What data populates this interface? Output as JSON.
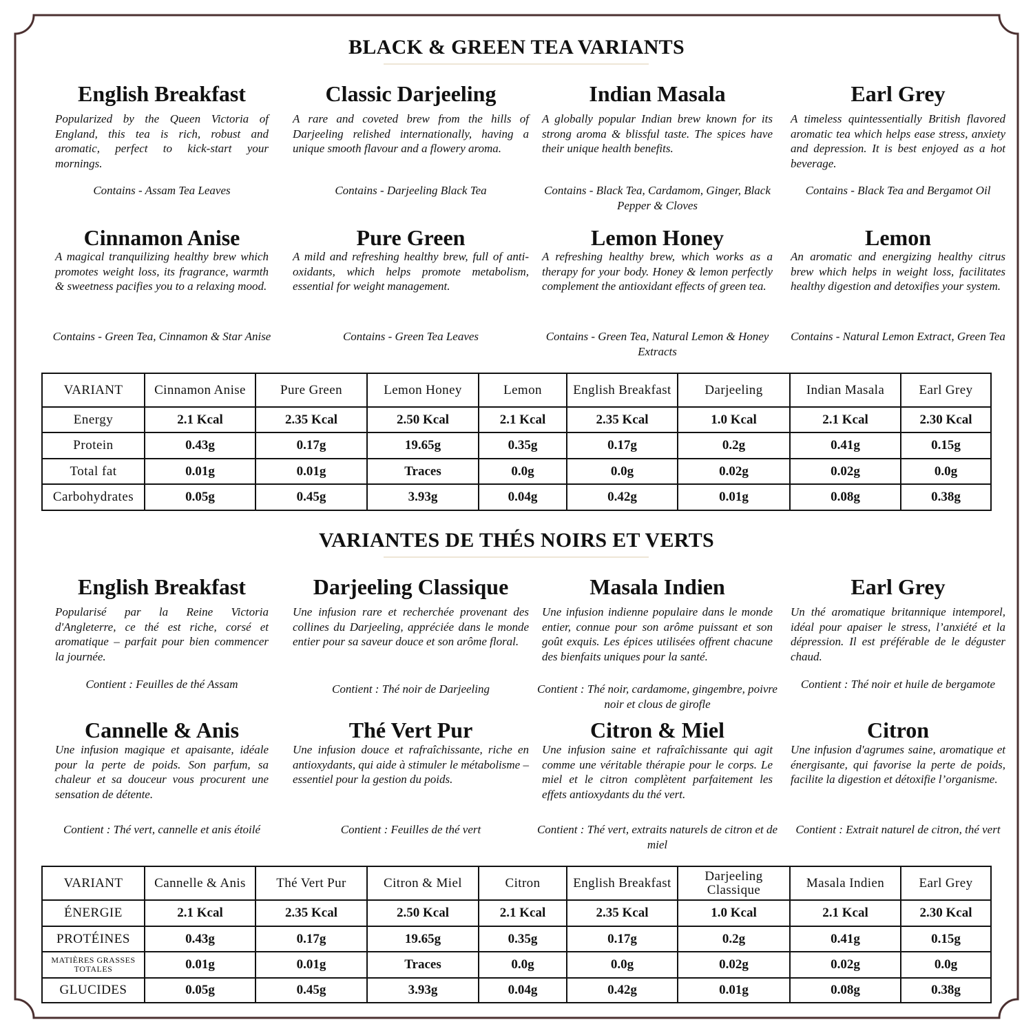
{
  "colors": {
    "border": "#4b3030",
    "rule": "#eee6d6",
    "text": "#111111"
  },
  "en": {
    "heading": "BLACK & GREEN TEA VARIANTS",
    "cards": [
      {
        "title": "English Breakfast",
        "desc": "Popularized by the Queen Victoria of England, this tea is rich, robust and aromatic, perfect to kick-start your mornings.",
        "contains": "Contains - Assam Tea Leaves"
      },
      {
        "title": "Classic Darjeeling",
        "desc": "A rare and coveted brew from the hills of Darjeeling relished internationally, having a unique smooth flavour and a flowery aroma.",
        "contains": "Contains - Darjeeling Black Tea"
      },
      {
        "title": "Indian Masala",
        "desc": "A globally popular Indian brew known for its strong aroma & blissful taste. The spices have their unique health benefits.",
        "contains": "Contains - Black Tea, Cardamom, Ginger, Black Pepper & Cloves"
      },
      {
        "title": "Earl Grey",
        "desc": "A timeless quintessentially British flavored aromatic tea which helps ease stress, anxiety and depression. It is best enjoyed as a hot beverage.",
        "contains": "Contains - Black Tea and Bergamot Oil"
      },
      {
        "title": "Cinnamon Anise",
        "desc": "A magical tranquilizing healthy brew which promotes weight loss, its fragrance, warmth & sweetness pacifies you to a relaxing mood.",
        "contains": "Contains - Green Tea, Cinnamon & Star Anise"
      },
      {
        "title": "Pure Green",
        "desc": "A mild and refreshing healthy brew, full of anti-oxidants, which helps promote metabolism, essential for weight management.",
        "contains": "Contains - Green Tea Leaves"
      },
      {
        "title": "Lemon Honey",
        "desc": "A refreshing healthy brew, which works as a therapy for your body. Honey & lemon perfectly complement the antioxidant effects of green tea.",
        "contains": "Contains - Green Tea, Natural Lemon & Honey Extracts"
      },
      {
        "title": "Lemon",
        "desc": "An aromatic and energizing healthy citrus brew which helps in weight loss, facilitates healthy digestion and detoxifies your system.",
        "contains": "Contains - Natural Lemon Extract, Green Tea"
      }
    ],
    "table": {
      "header": [
        "VARIANT",
        "Cinnamon Anise",
        "Pure Green",
        "Lemon Honey",
        "Lemon",
        "English Breakfast",
        "Darjeeling",
        "Indian Masala",
        "Earl Grey"
      ],
      "rows": [
        [
          "Energy",
          "2.1 Kcal",
          "2.35 Kcal",
          "2.50 Kcal",
          "2.1 Kcal",
          "2.35 Kcal",
          "1.0 Kcal",
          "2.1 Kcal",
          "2.30 Kcal"
        ],
        [
          "Protein",
          "0.43g",
          "0.17g",
          "19.65g",
          "0.35g",
          "0.17g",
          "0.2g",
          "0.41g",
          "0.15g"
        ],
        [
          "Total fat",
          "0.01g",
          "0.01g",
          "Traces",
          "0.0g",
          "0.0g",
          "0.02g",
          "0.02g",
          "0.0g"
        ],
        [
          "Carbohydrates",
          "0.05g",
          "0.45g",
          "3.93g",
          "0.04g",
          "0.42g",
          "0.01g",
          "0.08g",
          "0.38g"
        ]
      ]
    }
  },
  "fr": {
    "heading": "VARIANTES DE THÉS NOIRS ET VERTS",
    "cards": [
      {
        "title": "English Breakfast",
        "desc": "Popularisé par la Reine Victoria d'Angleterre, ce thé est riche, corsé et aromatique – parfait pour bien commencer la journée.",
        "contains": "Contient : Feuilles de thé Assam"
      },
      {
        "title": "Darjeeling Classique",
        "desc": "Une infusion rare et recherchée provenant des collines du Darjeeling, appréciée dans le monde entier pour sa saveur douce et son arôme floral.",
        "contains": "Contient : Thé noir de Darjeeling"
      },
      {
        "title": "Masala Indien",
        "desc": "Une infusion indienne populaire dans le monde entier, connue pour son arôme puissant et son goût exquis. Les épices utilisées offrent chacune des bienfaits uniques pour la santé.",
        "contains": "Contient : Thé noir, cardamome, gingembre, poivre noir et clous de girofle"
      },
      {
        "title": "Earl Grey",
        "desc": "Un thé aromatique britannique intemporel, idéal pour apaiser le stress, l’anxiété et la dépression. Il est préférable de le déguster chaud.",
        "contains": "Contient : Thé noir et huile de bergamote"
      },
      {
        "title": "Cannelle & Anis",
        "desc": "Une infusion magique et apaisante, idéale pour la perte de poids. Son parfum, sa chaleur et sa douceur vous procurent une sensation de détente.",
        "contains": "Contient : Thé vert, cannelle et anis étoilé"
      },
      {
        "title": "Thé Vert Pur",
        "desc": "Une infusion douce et rafraîchissante, riche en antioxydants, qui aide à stimuler le métabolisme – essentiel pour la gestion du poids.",
        "contains": "Contient : Feuilles de thé vert"
      },
      {
        "title": "Citron & Miel",
        "desc": "Une infusion saine et rafraîchissante qui agit comme une véritable thérapie pour le corps. Le miel et le citron complètent parfaitement les effets antioxydants du thé vert.",
        "contains": "Contient : Thé vert, extraits naturels de citron et de miel"
      },
      {
        "title": "Citron",
        "desc": "Une infusion d'agrumes saine, aromatique et énergisante, qui favorise la perte de poids, facilite la digestion et détoxifie l’organisme.",
        "contains": "Contient : Extrait naturel de citron, thé vert"
      }
    ],
    "table": {
      "header": [
        "VARIANT",
        "Cannelle & Anis",
        "Thé Vert Pur",
        "Citron & Miel",
        "Citron",
        "English Breakfast",
        "Darjeeling Classique",
        "Masala Indien",
        "Earl Grey"
      ],
      "rows": [
        [
          "ÉNERGIE",
          "2.1 Kcal",
          "2.35 Kcal",
          "2.50 Kcal",
          "2.1 Kcal",
          "2.35 Kcal",
          "1.0 Kcal",
          "2.1 Kcal",
          "2.30 Kcal"
        ],
        [
          "PROTÉINES",
          "0.43g",
          "0.17g",
          "19.65g",
          "0.35g",
          "0.17g",
          "0.2g",
          "0.41g",
          "0.15g"
        ],
        [
          "MATIÈRES GRASSES TOTALES",
          "0.01g",
          "0.01g",
          "Traces",
          "0.0g",
          "0.0g",
          "0.02g",
          "0.02g",
          "0.0g"
        ],
        [
          "GLUCIDES",
          "0.05g",
          "0.45g",
          "3.93g",
          "0.04g",
          "0.42g",
          "0.01g",
          "0.08g",
          "0.38g"
        ]
      ]
    }
  }
}
